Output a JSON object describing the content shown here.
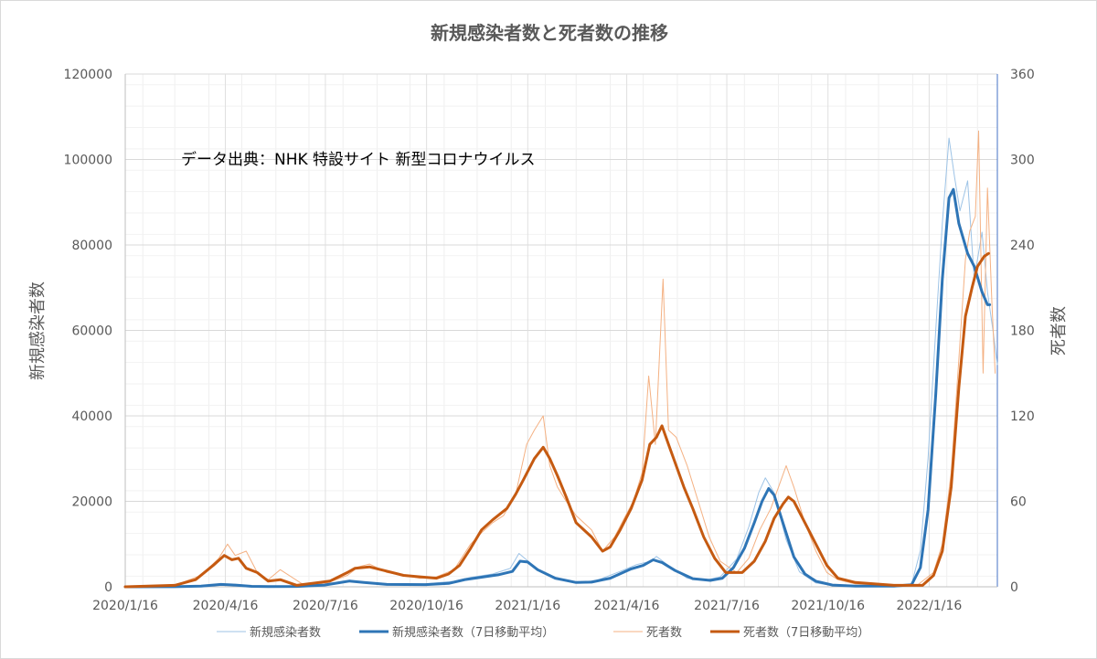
{
  "chart_data": {
    "type": "line",
    "title": "新規感染者数と死者数の推移",
    "annotation": "データ出典：NHK 特設サイト 新型コロナウイルス",
    "ylabel_left": "新規感染者数",
    "ylabel_right": "死者数",
    "ylim_left": [
      0,
      120000
    ],
    "ylim_right": [
      0,
      360
    ],
    "yticks_left": [
      "0",
      "20000",
      "40000",
      "60000",
      "80000",
      "100000",
      "120000"
    ],
    "yticks_right": [
      "0",
      "60",
      "120",
      "180",
      "240",
      "300",
      "360"
    ],
    "x_tick_labels": [
      "2020/1/16",
      "2020/4/16",
      "2020/7/16",
      "2020/10/16",
      "2021/1/16",
      "2021/4/16",
      "2021/7/16",
      "2021/10/16",
      "2022/1/16"
    ],
    "x_range": [
      "2020-01-16",
      "2022-03-19"
    ],
    "grid": true,
    "legend_position": "bottom",
    "series": [
      {
        "name": "新規感染者数",
        "axis": "left",
        "color": "#9dc3e6",
        "points": [
          [
            "2020-01-16",
            0
          ],
          [
            "2020-03-01",
            20
          ],
          [
            "2020-04-01",
            300
          ],
          [
            "2020-04-10",
            600
          ],
          [
            "2020-04-18",
            560
          ],
          [
            "2020-05-01",
            250
          ],
          [
            "2020-05-20",
            30
          ],
          [
            "2020-06-20",
            90
          ],
          [
            "2020-07-10",
            400
          ],
          [
            "2020-07-25",
            900
          ],
          [
            "2020-08-07",
            1550
          ],
          [
            "2020-08-20",
            1000
          ],
          [
            "2020-09-10",
            550
          ],
          [
            "2020-10-10",
            550
          ],
          [
            "2020-11-10",
            1300
          ],
          [
            "2020-11-25",
            2200
          ],
          [
            "2020-12-15",
            3000
          ],
          [
            "2020-12-31",
            4300
          ],
          [
            "2021-01-08",
            7800
          ],
          [
            "2021-01-14",
            6500
          ],
          [
            "2021-01-25",
            4000
          ],
          [
            "2021-02-10",
            1900
          ],
          [
            "2021-03-01",
            1000
          ],
          [
            "2021-03-20",
            1500
          ],
          [
            "2021-04-10",
            3600
          ],
          [
            "2021-04-25",
            5200
          ],
          [
            "2021-05-08",
            6000
          ],
          [
            "2021-05-13",
            7100
          ],
          [
            "2021-05-25",
            4800
          ],
          [
            "2021-06-10",
            2000
          ],
          [
            "2021-06-25",
            1500
          ],
          [
            "2021-07-10",
            2300
          ],
          [
            "2021-07-25",
            6500
          ],
          [
            "2021-08-05",
            14000
          ],
          [
            "2021-08-14",
            22000
          ],
          [
            "2021-08-20",
            25500
          ],
          [
            "2021-08-28",
            22000
          ],
          [
            "2021-09-08",
            11000
          ],
          [
            "2021-09-20",
            3500
          ],
          [
            "2021-10-05",
            900
          ],
          [
            "2021-10-20",
            300
          ],
          [
            "2021-11-10",
            150
          ],
          [
            "2021-12-15",
            200
          ],
          [
            "2021-12-31",
            600
          ],
          [
            "2022-01-08",
            8500
          ],
          [
            "2022-01-15",
            30000
          ],
          [
            "2022-01-22",
            60000
          ],
          [
            "2022-01-28",
            85000
          ],
          [
            "2022-02-03",
            105000
          ],
          [
            "2022-02-08",
            96000
          ],
          [
            "2022-02-13",
            88000
          ],
          [
            "2022-02-20",
            95000
          ],
          [
            "2022-02-26",
            72000
          ],
          [
            "2022-03-05",
            83000
          ],
          [
            "2022-03-10",
            69000
          ],
          [
            "2022-03-15",
            60000
          ],
          [
            "2022-03-19",
            52000
          ]
        ]
      },
      {
        "name": "新規感染者数（7日移動平均）",
        "axis": "left",
        "color": "#2e75b6",
        "points": [
          [
            "2020-01-16",
            0
          ],
          [
            "2020-03-01",
            20
          ],
          [
            "2020-03-25",
            150
          ],
          [
            "2020-04-12",
            560
          ],
          [
            "2020-04-25",
            400
          ],
          [
            "2020-05-10",
            100
          ],
          [
            "2020-05-25",
            40
          ],
          [
            "2020-06-20",
            80
          ],
          [
            "2020-07-15",
            400
          ],
          [
            "2020-07-28",
            950
          ],
          [
            "2020-08-07",
            1350
          ],
          [
            "2020-08-20",
            1000
          ],
          [
            "2020-09-10",
            560
          ],
          [
            "2020-10-15",
            520
          ],
          [
            "2020-11-05",
            800
          ],
          [
            "2020-11-20",
            1700
          ],
          [
            "2020-12-05",
            2250
          ],
          [
            "2020-12-20",
            2800
          ],
          [
            "2021-01-02",
            3600
          ],
          [
            "2021-01-09",
            6000
          ],
          [
            "2021-01-16",
            5800
          ],
          [
            "2021-01-25",
            4000
          ],
          [
            "2021-02-10",
            2000
          ],
          [
            "2021-03-01",
            1000
          ],
          [
            "2021-03-15",
            1100
          ],
          [
            "2021-04-01",
            2000
          ],
          [
            "2021-04-20",
            4200
          ],
          [
            "2021-05-01",
            5000
          ],
          [
            "2021-05-10",
            6300
          ],
          [
            "2021-05-18",
            5700
          ],
          [
            "2021-05-30",
            3800
          ],
          [
            "2021-06-15",
            1900
          ],
          [
            "2021-07-01",
            1500
          ],
          [
            "2021-07-12",
            2000
          ],
          [
            "2021-07-22",
            4500
          ],
          [
            "2021-08-01",
            9000
          ],
          [
            "2021-08-10",
            15000
          ],
          [
            "2021-08-17",
            20000
          ],
          [
            "2021-08-23",
            23000
          ],
          [
            "2021-08-28",
            21500
          ],
          [
            "2021-09-05",
            15000
          ],
          [
            "2021-09-15",
            7000
          ],
          [
            "2021-09-25",
            3000
          ],
          [
            "2021-10-05",
            1300
          ],
          [
            "2021-10-20",
            400
          ],
          [
            "2021-11-10",
            150
          ],
          [
            "2021-12-15",
            180
          ],
          [
            "2021-12-31",
            500
          ],
          [
            "2022-01-08",
            4500
          ],
          [
            "2022-01-15",
            18000
          ],
          [
            "2022-01-22",
            45000
          ],
          [
            "2022-01-28",
            72000
          ],
          [
            "2022-02-03",
            91000
          ],
          [
            "2022-02-07",
            93000
          ],
          [
            "2022-02-12",
            85000
          ],
          [
            "2022-02-20",
            78000
          ],
          [
            "2022-02-26",
            75000
          ],
          [
            "2022-03-05",
            69000
          ],
          [
            "2022-03-10",
            66000
          ],
          [
            "2022-03-12",
            66000
          ]
        ]
      },
      {
        "name": "死者数",
        "axis": "right",
        "color": "#f4b183",
        "points": [
          [
            "2020-01-16",
            0
          ],
          [
            "2020-03-01",
            1
          ],
          [
            "2020-03-25",
            8
          ],
          [
            "2020-04-10",
            20
          ],
          [
            "2020-04-18",
            30
          ],
          [
            "2020-04-25",
            22
          ],
          [
            "2020-05-05",
            25
          ],
          [
            "2020-05-15",
            10
          ],
          [
            "2020-05-25",
            5
          ],
          [
            "2020-06-05",
            12
          ],
          [
            "2020-06-25",
            2
          ],
          [
            "2020-07-15",
            2
          ],
          [
            "2020-08-05",
            8
          ],
          [
            "2020-08-15",
            14
          ],
          [
            "2020-08-25",
            16
          ],
          [
            "2020-09-10",
            10
          ],
          [
            "2020-09-25",
            8
          ],
          [
            "2020-10-10",
            6
          ],
          [
            "2020-10-25",
            7
          ],
          [
            "2020-11-10",
            12
          ],
          [
            "2020-11-25",
            30
          ],
          [
            "2020-12-05",
            38
          ],
          [
            "2020-12-15",
            45
          ],
          [
            "2020-12-25",
            50
          ],
          [
            "2021-01-05",
            65
          ],
          [
            "2021-01-15",
            100
          ],
          [
            "2021-01-22",
            110
          ],
          [
            "2021-01-30",
            120
          ],
          [
            "2021-02-05",
            85
          ],
          [
            "2021-02-12",
            70
          ],
          [
            "2021-02-20",
            60
          ],
          [
            "2021-03-01",
            50
          ],
          [
            "2021-03-15",
            40
          ],
          [
            "2021-03-25",
            25
          ],
          [
            "2021-04-05",
            35
          ],
          [
            "2021-04-15",
            50
          ],
          [
            "2021-04-22",
            60
          ],
          [
            "2021-04-30",
            80
          ],
          [
            "2021-05-06",
            148
          ],
          [
            "2021-05-12",
            100
          ],
          [
            "2021-05-19",
            216
          ],
          [
            "2021-05-24",
            110
          ],
          [
            "2021-05-31",
            105
          ],
          [
            "2021-06-10",
            85
          ],
          [
            "2021-06-20",
            60
          ],
          [
            "2021-06-30",
            35
          ],
          [
            "2021-07-10",
            18
          ],
          [
            "2021-07-25",
            10
          ],
          [
            "2021-08-05",
            20
          ],
          [
            "2021-08-15",
            40
          ],
          [
            "2021-08-25",
            55
          ],
          [
            "2021-09-01",
            70
          ],
          [
            "2021-09-08",
            85
          ],
          [
            "2021-09-15",
            70
          ],
          [
            "2021-09-25",
            45
          ],
          [
            "2021-10-05",
            25
          ],
          [
            "2021-10-15",
            10
          ],
          [
            "2021-10-25",
            5
          ],
          [
            "2021-11-10",
            2
          ],
          [
            "2021-12-15",
            1
          ],
          [
            "2022-01-05",
            1
          ],
          [
            "2022-01-20",
            10
          ],
          [
            "2022-01-28",
            30
          ],
          [
            "2022-02-05",
            80
          ],
          [
            "2022-02-12",
            160
          ],
          [
            "2022-02-18",
            230
          ],
          [
            "2022-02-22",
            250
          ],
          [
            "2022-02-27",
            260
          ],
          [
            "2022-03-02",
            320
          ],
          [
            "2022-03-06",
            150
          ],
          [
            "2022-03-10",
            280
          ],
          [
            "2022-03-14",
            200
          ],
          [
            "2022-03-17",
            150
          ]
        ]
      },
      {
        "name": "死者数（7日移動平均）",
        "axis": "right",
        "color": "#c55a11",
        "points": [
          [
            "2020-01-16",
            0
          ],
          [
            "2020-03-01",
            1
          ],
          [
            "2020-03-20",
            5
          ],
          [
            "2020-04-05",
            15
          ],
          [
            "2020-04-15",
            22
          ],
          [
            "2020-04-22",
            19
          ],
          [
            "2020-04-28",
            20
          ],
          [
            "2020-05-05",
            13
          ],
          [
            "2020-05-15",
            10
          ],
          [
            "2020-05-25",
            4
          ],
          [
            "2020-06-05",
            5
          ],
          [
            "2020-06-20",
            1
          ],
          [
            "2020-07-20",
            4
          ],
          [
            "2020-08-05",
            10
          ],
          [
            "2020-08-12",
            13
          ],
          [
            "2020-08-25",
            14
          ],
          [
            "2020-09-10",
            11
          ],
          [
            "2020-09-25",
            8
          ],
          [
            "2020-10-10",
            7
          ],
          [
            "2020-10-25",
            6
          ],
          [
            "2020-11-05",
            9
          ],
          [
            "2020-11-15",
            15
          ],
          [
            "2020-11-25",
            27
          ],
          [
            "2020-12-05",
            40
          ],
          [
            "2020-12-15",
            47
          ],
          [
            "2020-12-28",
            55
          ],
          [
            "2021-01-05",
            65
          ],
          [
            "2021-01-12",
            75
          ],
          [
            "2021-01-22",
            90
          ],
          [
            "2021-01-30",
            98
          ],
          [
            "2021-02-05",
            90
          ],
          [
            "2021-02-12",
            78
          ],
          [
            "2021-02-20",
            63
          ],
          [
            "2021-03-01",
            45
          ],
          [
            "2021-03-15",
            35
          ],
          [
            "2021-03-25",
            25
          ],
          [
            "2021-04-01",
            28
          ],
          [
            "2021-04-10",
            40
          ],
          [
            "2021-04-20",
            55
          ],
          [
            "2021-04-30",
            75
          ],
          [
            "2021-05-07",
            100
          ],
          [
            "2021-05-13",
            105
          ],
          [
            "2021-05-18",
            113
          ],
          [
            "2021-05-24",
            100
          ],
          [
            "2021-05-31",
            85
          ],
          [
            "2021-06-07",
            70
          ],
          [
            "2021-06-15",
            55
          ],
          [
            "2021-06-25",
            35
          ],
          [
            "2021-07-05",
            20
          ],
          [
            "2021-07-15",
            10
          ],
          [
            "2021-07-30",
            10
          ],
          [
            "2021-08-10",
            18
          ],
          [
            "2021-08-20",
            32
          ],
          [
            "2021-08-28",
            48
          ],
          [
            "2021-09-05",
            58
          ],
          [
            "2021-09-10",
            63
          ],
          [
            "2021-09-15",
            60
          ],
          [
            "2021-09-25",
            45
          ],
          [
            "2021-10-05",
            30
          ],
          [
            "2021-10-15",
            15
          ],
          [
            "2021-10-25",
            6
          ],
          [
            "2021-11-10",
            3
          ],
          [
            "2021-12-15",
            1
          ],
          [
            "2022-01-10",
            1
          ],
          [
            "2022-01-20",
            8
          ],
          [
            "2022-01-28",
            25
          ],
          [
            "2022-02-05",
            70
          ],
          [
            "2022-02-12",
            140
          ],
          [
            "2022-02-18",
            190
          ],
          [
            "2022-02-24",
            210
          ],
          [
            "2022-03-01",
            225
          ],
          [
            "2022-03-07",
            232
          ],
          [
            "2022-03-11",
            234
          ]
        ]
      }
    ]
  }
}
